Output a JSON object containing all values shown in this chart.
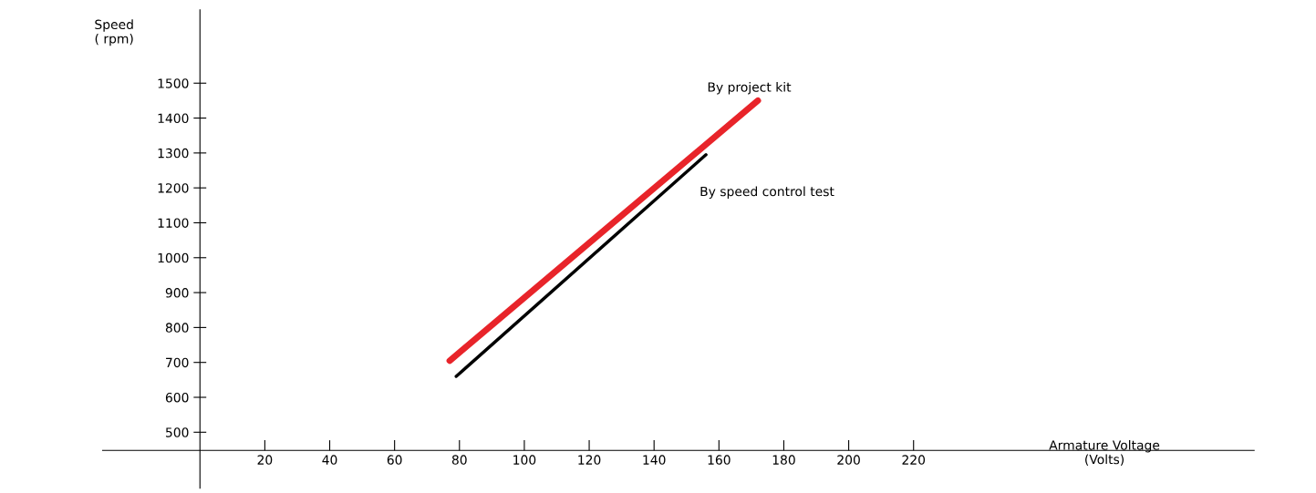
{
  "chart_data": {
    "type": "line",
    "xlabel": "Armature Voltage\n(Volts)",
    "ylabel": "Speed\n( rpm)",
    "xlim": [
      -30,
      325
    ],
    "ylim": [
      340,
      1710
    ],
    "xticks": [
      20,
      40,
      60,
      80,
      100,
      120,
      140,
      160,
      180,
      200,
      220
    ],
    "yticks": [
      500,
      600,
      700,
      800,
      900,
      1000,
      1100,
      1200,
      1300,
      1400,
      1500
    ],
    "grid": false,
    "legend": false,
    "marker": "none",
    "line_style": "solid",
    "series": [
      {
        "name": "By project kit",
        "color": "#e8242a",
        "x": [
          77,
          172
        ],
        "values": [
          705,
          1450
        ]
      },
      {
        "name": "By speed control test",
        "color": "#000000",
        "x": [
          79,
          156
        ],
        "values": [
          660,
          1295
        ]
      }
    ]
  }
}
